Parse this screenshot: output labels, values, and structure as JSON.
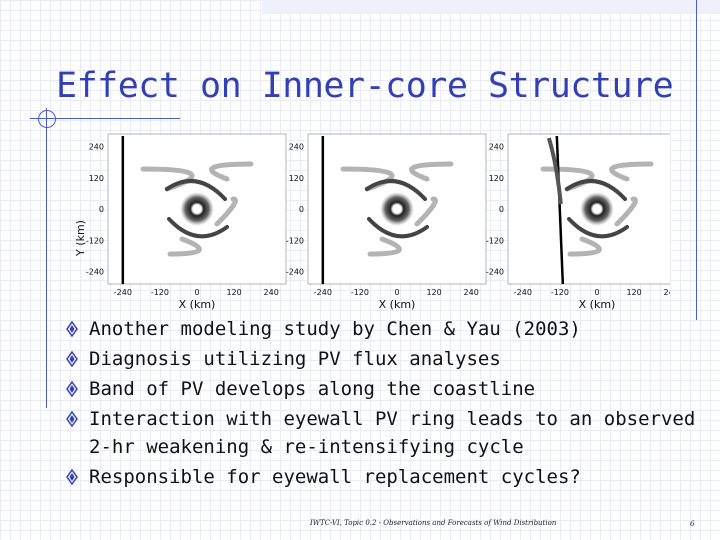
{
  "slide": {
    "title": "Effect on Inner-core Structure",
    "footer": "IWTC-VI, Topic 0.2 - Observations and Forecasts of Wind Distribution",
    "page_number": "6"
  },
  "bullets": [
    "Another modeling study by Chen & Yau (2003)",
    "Diagnosis utilizing PV flux analyses",
    "Band of PV develops along the coastline",
    "Interaction with eyewall PV ring leads to an observed 2-hr weakening & re-intensifying cycle",
    "Responsible for eyewall replacement cycles?"
  ],
  "figure": {
    "y_axis_label": "Y (km)",
    "x_axis_label": "X (km)",
    "y_ticks": [
      "240",
      "120",
      "0",
      "-120",
      "-240"
    ],
    "x_ticks": [
      "-240",
      "-120",
      "0",
      "120",
      "240"
    ],
    "panels": [
      {
        "name": "panel-1",
        "coastline_x_km": -240
      },
      {
        "name": "panel-2",
        "coastline_x_km": -240
      },
      {
        "name": "panel-3",
        "coastline_x_km": -130
      }
    ]
  },
  "colors": {
    "title": "#3340b5",
    "accent_lines": "#4a5bd0",
    "bullet_icon": "#3340b5"
  },
  "icons": {
    "bullet": "diamond-bullet-icon"
  }
}
